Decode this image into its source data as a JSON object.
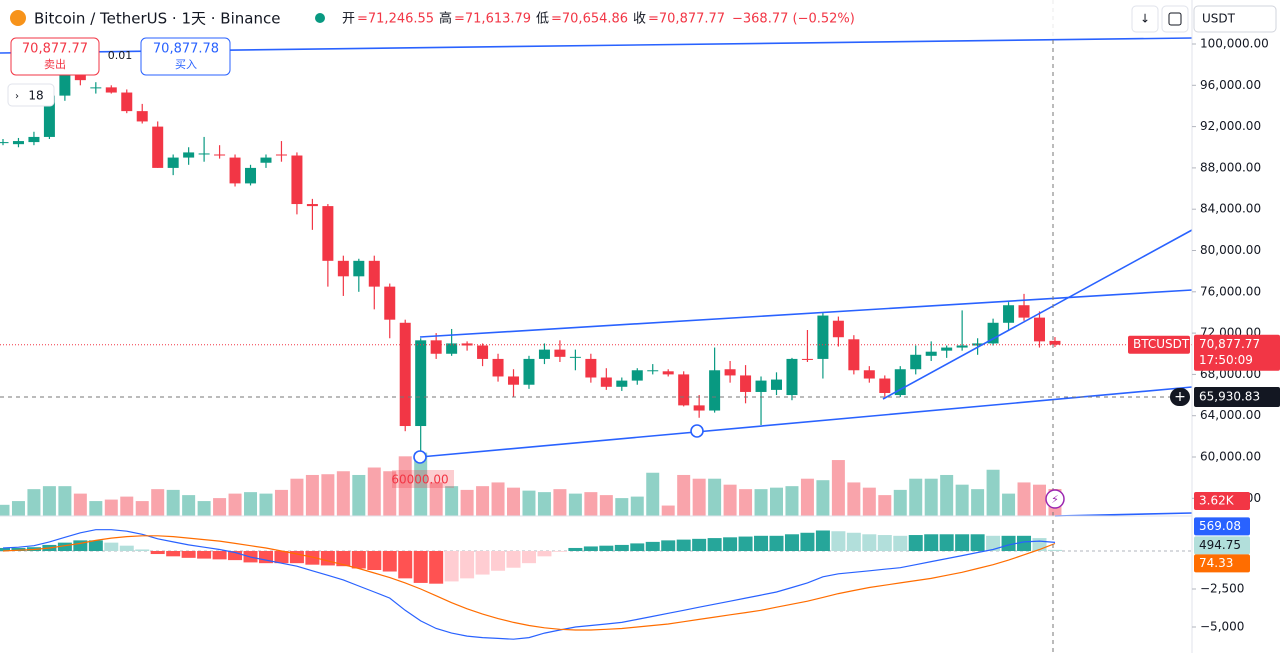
{
  "header": {
    "symbol": "Bitcoin / TetherUS · 1天 · Binance",
    "ohlc": [
      {
        "key": "开",
        "value": "=71,246.55"
      },
      {
        "key": "高",
        "value": "=71,613.79"
      },
      {
        "key": "低",
        "value": "=70,654.86"
      },
      {
        "key": "收",
        "value": "=70,877.77"
      }
    ],
    "change": "−368.77 (−0.52%)",
    "currency": "USDT"
  },
  "trade": {
    "sell_price": "70,877.77",
    "sell": "卖出",
    "quantity": "0.01",
    "buy_price": "70,877.78",
    "buy": "买入"
  },
  "indicator_count": "18",
  "annotation": "60000.00",
  "ui": {
    "symbol_tag": "BTCUSDT",
    "countdown": "17:50:09",
    "crosshair_price": "65,930.83"
  },
  "chart_data": {
    "type": "candlestick",
    "up_color": "#089981",
    "down_color": "#f23645",
    "ohlc": [
      [
        90400,
        90800,
        90200,
        90500
      ],
      [
        90300,
        90900,
        90000,
        90600
      ],
      [
        90500,
        91500,
        90200,
        91000
      ],
      [
        91000,
        95500,
        90800,
        95000
      ],
      [
        95000,
        98000,
        94500,
        97500
      ],
      [
        97500,
        99500,
        96000,
        96500
      ],
      [
        95800,
        96300,
        95200,
        95800
      ],
      [
        95800,
        96000,
        95200,
        95300
      ],
      [
        95300,
        95600,
        93300,
        93500
      ],
      [
        93500,
        94200,
        92300,
        92500
      ],
      [
        92000,
        92500,
        88000,
        88000
      ],
      [
        88000,
        89300,
        87300,
        89000
      ],
      [
        89000,
        90000,
        88300,
        89500
      ],
      [
        89300,
        91000,
        88600,
        89400
      ],
      [
        89300,
        90200,
        88900,
        89200
      ],
      [
        89000,
        89300,
        86200,
        86500
      ],
      [
        86500,
        88300,
        86300,
        88000
      ],
      [
        88500,
        89300,
        88000,
        89000
      ],
      [
        89300,
        90600,
        88600,
        89200
      ],
      [
        89200,
        89500,
        83500,
        84500
      ],
      [
        84500,
        85000,
        82000,
        84300
      ],
      [
        84300,
        84500,
        76500,
        79000
      ],
      [
        79000,
        79500,
        75600,
        77500
      ],
      [
        77500,
        79200,
        76000,
        79000
      ],
      [
        79000,
        79500,
        74300,
        76500
      ],
      [
        76500,
        76800,
        71500,
        73300
      ],
      [
        73000,
        73300,
        62500,
        63000
      ],
      [
        63000,
        71500,
        60000,
        71300
      ],
      [
        71300,
        72000,
        69500,
        70000
      ],
      [
        70000,
        72400,
        69800,
        71000
      ],
      [
        71000,
        71200,
        70300,
        70800
      ],
      [
        70800,
        71000,
        68800,
        69500
      ],
      [
        69500,
        70000,
        67300,
        67800
      ],
      [
        67800,
        68500,
        65800,
        67000
      ],
      [
        67000,
        69800,
        66600,
        69500
      ],
      [
        69500,
        71000,
        69000,
        70400
      ],
      [
        70400,
        71300,
        69200,
        69700
      ],
      [
        69700,
        70400,
        68400,
        69700
      ],
      [
        69500,
        70000,
        67200,
        67700
      ],
      [
        67700,
        68600,
        66500,
        66800
      ],
      [
        66800,
        67700,
        66400,
        67400
      ],
      [
        67400,
        68600,
        67000,
        68400
      ],
      [
        68400,
        69000,
        68000,
        68400
      ],
      [
        68300,
        68500,
        67800,
        68000
      ],
      [
        68000,
        68300,
        64900,
        65000
      ],
      [
        65000,
        66000,
        63800,
        64500
      ],
      [
        64500,
        70600,
        64300,
        68400
      ],
      [
        68500,
        69300,
        67200,
        67900
      ],
      [
        67900,
        68900,
        65200,
        66300
      ],
      [
        66300,
        67800,
        63100,
        67400
      ],
      [
        66500,
        68200,
        66000,
        67500
      ],
      [
        66000,
        69600,
        65500,
        69500
      ],
      [
        69500,
        72300,
        69200,
        69400
      ],
      [
        69500,
        74000,
        67600,
        73700
      ],
      [
        73200,
        73600,
        70700,
        71600
      ],
      [
        71400,
        71800,
        68000,
        68400
      ],
      [
        68400,
        68800,
        67200,
        67600
      ],
      [
        67600,
        67900,
        65700,
        66200
      ],
      [
        66000,
        68800,
        65800,
        68500
      ],
      [
        68500,
        70800,
        68000,
        69900
      ],
      [
        69800,
        71200,
        69300,
        70200
      ],
      [
        70300,
        70800,
        69600,
        70600
      ],
      [
        70600,
        74200,
        70300,
        70800
      ],
      [
        70800,
        71500,
        69900,
        71000
      ],
      [
        71000,
        73400,
        70800,
        73000
      ],
      [
        73000,
        75000,
        72300,
        74700
      ],
      [
        74700,
        75800,
        73200,
        73500
      ],
      [
        73500,
        74100,
        70600,
        71200
      ],
      [
        71246.55,
        71613.79,
        70654.86,
        70877.77
      ]
    ],
    "last_price_label": "70,877.77",
    "ylim": [
      54286,
      104262
    ],
    "yticks": [
      {
        "value": 100000,
        "label": "100,000.00"
      },
      {
        "value": 96000,
        "label": "96,000.00"
      },
      {
        "value": 92000,
        "label": "92,000.00"
      },
      {
        "value": 88000,
        "label": "88,000.00"
      },
      {
        "value": 84000,
        "label": "84,000.00"
      },
      {
        "value": 80000,
        "label": "80,000.00"
      },
      {
        "value": 76000,
        "label": "76,000.00"
      },
      {
        "value": 72000,
        "label": "72,000.00"
      },
      {
        "value": 68000,
        "label": "68,000.00"
      },
      {
        "value": 64000,
        "label": "64,000.00"
      },
      {
        "value": 60000,
        "label": "60,000.00"
      },
      {
        "value": 56000,
        "label": "56,000.00"
      }
    ],
    "volume": [
      1.5,
      2.0,
      3.6,
      4.0,
      4.0,
      3.0,
      2.0,
      2.2,
      2.6,
      2.0,
      3.6,
      3.5,
      2.8,
      2.0,
      2.4,
      3.0,
      3.2,
      3.0,
      3.5,
      5.0,
      5.5,
      5.6,
      6.0,
      5.5,
      6.5,
      6.0,
      8.0,
      8.5,
      4.5,
      4.0,
      3.5,
      4.0,
      4.5,
      3.8,
      3.4,
      3.2,
      3.6,
      3.0,
      3.2,
      2.8,
      2.4,
      2.6,
      5.8,
      1.4,
      5.5,
      5.0,
      5.0,
      4.2,
      3.6,
      3.6,
      3.8,
      4.0,
      5.0,
      4.8,
      7.5,
      4.5,
      3.8,
      2.8,
      3.5,
      5.0,
      5.0,
      5.5,
      4.2,
      3.6,
      6.2,
      3.0,
      4.5,
      4.2,
      3.62
    ],
    "volume_label": "3.62K",
    "macd": {
      "color": "#2962ff",
      "label": "569.08",
      "values": [
        200,
        250,
        350,
        600,
        900,
        1200,
        1400,
        1400,
        1300,
        1100,
        800,
        600,
        400,
        250,
        100,
        -100,
        -400,
        -600,
        -800,
        -1000,
        -1300,
        -1600,
        -1900,
        -2300,
        -2700,
        -3100,
        -3900,
        -4600,
        -5100,
        -5400,
        -5600,
        -5700,
        -5750,
        -5800,
        -5700,
        -5400,
        -5200,
        -5000,
        -4900,
        -4800,
        -4700,
        -4500,
        -4300,
        -4100,
        -3900,
        -3700,
        -3500,
        -3300,
        -3100,
        -2900,
        -2700,
        -2400,
        -2100,
        -1700,
        -1500,
        -1400,
        -1300,
        -1200,
        -1100,
        -900,
        -700,
        -500,
        -300,
        -100,
        100,
        400,
        600,
        650,
        569.08
      ]
    },
    "signal": {
      "color": "#ff6d00",
      "label": "494.75",
      "values": [
        0,
        50,
        100,
        200,
        350,
        500,
        700,
        850,
        950,
        1000,
        1000,
        950,
        850,
        750,
        650,
        500,
        350,
        200,
        0,
        -200,
        -400,
        -650,
        -900,
        -1150,
        -1450,
        -1750,
        -2100,
        -2500,
        -2950,
        -3400,
        -3800,
        -4150,
        -4450,
        -4700,
        -4900,
        -5050,
        -5150,
        -5200,
        -5200,
        -5150,
        -5100,
        -5000,
        -4900,
        -4800,
        -4650,
        -4500,
        -4350,
        -4200,
        -4050,
        -3900,
        -3700,
        -3500,
        -3300,
        -3050,
        -2800,
        -2600,
        -2400,
        -2250,
        -2100,
        -1950,
        -1800,
        -1600,
        -1400,
        -1150,
        -900,
        -600,
        -250,
        100,
        494.75
      ]
    },
    "histogram": {
      "label": "74.33",
      "values": [
        200,
        200,
        250,
        400,
        550,
        700,
        700,
        550,
        350,
        100,
        -200,
        -350,
        -450,
        -500,
        -550,
        -600,
        -750,
        -800,
        -800,
        -800,
        -900,
        -950,
        -1000,
        -1150,
        -1250,
        -1350,
        -1800,
        -2100,
        -2150,
        -2000,
        -1800,
        -1550,
        -1300,
        -1100,
        -800,
        -350,
        -50,
        200,
        300,
        350,
        400,
        500,
        600,
        700,
        750,
        800,
        850,
        900,
        950,
        1000,
        1000,
        1100,
        1200,
        1350,
        1300,
        1200,
        1100,
        1050,
        1000,
        1050,
        1100,
        1100,
        1100,
        1100,
        1000,
        1000,
        1000,
        850,
        74.33
      ]
    },
    "macd_ylim": [
      -6711,
      2303
    ],
    "macd_yticks": [
      {
        "value": -2500,
        "label": "−2,500"
      },
      {
        "value": -5000,
        "label": "−5,000"
      }
    ]
  }
}
